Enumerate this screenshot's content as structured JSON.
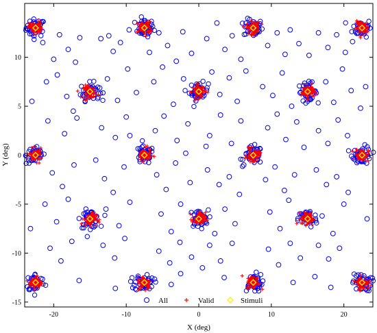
{
  "chart_data": {
    "type": "scatter",
    "xlabel": "X (deg)",
    "ylabel": "Y (deg)",
    "xlim": [
      -24,
      24
    ],
    "ylim": [
      -15.5,
      15.5
    ],
    "xticks": [
      -20,
      -10,
      0,
      10,
      20
    ],
    "yticks": [
      -15,
      -10,
      -5,
      0,
      5,
      10
    ],
    "grid": false,
    "legend_position": "bottom-center",
    "colors": {
      "all": "#0000ee",
      "valid": "#ff0000",
      "stimuli": "#ffee00"
    },
    "series": [
      {
        "name": "All",
        "marker": "open-circle",
        "color": "#0000ee"
      },
      {
        "name": "Valid",
        "marker": "plus",
        "color": "#ff0000"
      },
      {
        "name": "Stimuli",
        "marker": "diamond",
        "color": "#ffee00",
        "points": [
          [
            -22.5,
            13
          ],
          [
            -7.5,
            13
          ],
          [
            7.5,
            13
          ],
          [
            22.5,
            13
          ],
          [
            -15,
            6.5
          ],
          [
            0,
            6.5
          ],
          [
            15,
            6.5
          ],
          [
            -22.5,
            0
          ],
          [
            -7.5,
            0
          ],
          [
            7.5,
            0
          ],
          [
            22.5,
            0
          ],
          [
            -15,
            -6.5
          ],
          [
            0,
            -6.5
          ],
          [
            15,
            -6.5
          ],
          [
            -22.5,
            -13
          ],
          [
            -7.5,
            -13
          ],
          [
            7.5,
            -13
          ],
          [
            22.5,
            -13
          ]
        ]
      }
    ],
    "scattered_all_points": [
      [
        -21.5,
        11.5
      ],
      [
        -20,
        9.8
      ],
      [
        -19.2,
        12.3
      ],
      [
        -18,
        10.8
      ],
      [
        -17,
        9.5
      ],
      [
        -16.4,
        12.0
      ],
      [
        -13.5,
        11.9
      ],
      [
        -12.4,
        12.2
      ],
      [
        -11.8,
        10.6
      ],
      [
        -10.8,
        11.5
      ],
      [
        -9.6,
        12.8
      ],
      [
        -5.5,
        12.5
      ],
      [
        -4.3,
        11.2
      ],
      [
        -3.1,
        9.6
      ],
      [
        -2.2,
        12.6
      ],
      [
        -1.0,
        10.4
      ],
      [
        1.1,
        11.9
      ],
      [
        2.5,
        13.5
      ],
      [
        3.6,
        10.8
      ],
      [
        4.6,
        12.2
      ],
      [
        5.8,
        9.8
      ],
      [
        9.5,
        11.2
      ],
      [
        10.8,
        12.5
      ],
      [
        11.9,
        10.3
      ],
      [
        12.6,
        12.8
      ],
      [
        13.8,
        11.4
      ],
      [
        15.2,
        10.2
      ],
      [
        16.5,
        12.5
      ],
      [
        17.8,
        11.0
      ],
      [
        19.0,
        12.3
      ],
      [
        20.2,
        10.5
      ],
      [
        21.2,
        11.6
      ],
      [
        -21.0,
        7.5
      ],
      [
        -19.5,
        8.2
      ],
      [
        -18.2,
        6.0
      ],
      [
        -17.3,
        4.5
      ],
      [
        -12.6,
        7.8
      ],
      [
        -11.2,
        5.6
      ],
      [
        -9.8,
        8.8
      ],
      [
        -8.6,
        6.4
      ],
      [
        -6.2,
        7.5
      ],
      [
        -5.0,
        9.0
      ],
      [
        -3.5,
        5.2
      ],
      [
        -2.1,
        7.8
      ],
      [
        1.8,
        8.5
      ],
      [
        2.9,
        6.2
      ],
      [
        4.2,
        7.9
      ],
      [
        5.3,
        5.5
      ],
      [
        6.5,
        8.6
      ],
      [
        8.8,
        7.0
      ],
      [
        10.2,
        6.1
      ],
      [
        11.5,
        8.4
      ],
      [
        12.8,
        5.0
      ],
      [
        17.5,
        7.5
      ],
      [
        18.6,
        5.4
      ],
      [
        19.8,
        8.8
      ],
      [
        21.0,
        6.6
      ],
      [
        22.3,
        4.8
      ],
      [
        -20.8,
        3.5
      ],
      [
        -18.5,
        2.2
      ],
      [
        -16.8,
        3.8
      ],
      [
        -13.4,
        2.8
      ],
      [
        -11.5,
        1.8
      ],
      [
        -10.0,
        3.9
      ],
      [
        -6.0,
        2.5
      ],
      [
        -4.8,
        4.0
      ],
      [
        -3.0,
        1.5
      ],
      [
        -1.5,
        3.2
      ],
      [
        1.5,
        2.0
      ],
      [
        3.0,
        4.1
      ],
      [
        4.5,
        1.2
      ],
      [
        5.8,
        3.5
      ],
      [
        9.5,
        2.8
      ],
      [
        10.8,
        4.2
      ],
      [
        12.0,
        1.6
      ],
      [
        13.5,
        3.4
      ],
      [
        16.5,
        2.5
      ],
      [
        17.8,
        1.2
      ],
      [
        19.2,
        3.6
      ],
      [
        20.5,
        2.0
      ],
      [
        -20.2,
        -1.8
      ],
      [
        -18.8,
        -3.2
      ],
      [
        -17.2,
        -1.0
      ],
      [
        -13.0,
        -2.4
      ],
      [
        -11.8,
        -3.8
      ],
      [
        -10.3,
        -1.2
      ],
      [
        -5.8,
        -2.0
      ],
      [
        -4.5,
        -3.5
      ],
      [
        -3.2,
        -0.8
      ],
      [
        -1.2,
        -2.8
      ],
      [
        1.2,
        -1.5
      ],
      [
        2.8,
        -3.0
      ],
      [
        4.2,
        -2.2
      ],
      [
        5.6,
        -4.0
      ],
      [
        9.2,
        -2.5
      ],
      [
        10.5,
        -1.2
      ],
      [
        11.8,
        -3.6
      ],
      [
        13.2,
        -2.0
      ],
      [
        16.2,
        -1.5
      ],
      [
        17.6,
        -3.0
      ],
      [
        19.0,
        -2.2
      ],
      [
        20.6,
        -3.8
      ],
      [
        -21.2,
        -5.0
      ],
      [
        -19.6,
        -6.8
      ],
      [
        -18.0,
        -4.5
      ],
      [
        -12.8,
        -5.5
      ],
      [
        -11.0,
        -7.2
      ],
      [
        -9.5,
        -4.8
      ],
      [
        -5.2,
        -6.0
      ],
      [
        -3.8,
        -7.8
      ],
      [
        -2.5,
        -5.0
      ],
      [
        2.2,
        -8.0
      ],
      [
        3.6,
        -5.5
      ],
      [
        5.0,
        -7.0
      ],
      [
        9.8,
        -5.8
      ],
      [
        11.2,
        -7.5
      ],
      [
        12.4,
        -4.6
      ],
      [
        17.0,
        -6.2
      ],
      [
        18.5,
        -8.0
      ],
      [
        20.0,
        -5.0
      ],
      [
        -20.5,
        -9.5
      ],
      [
        -19.0,
        -10.8
      ],
      [
        -17.5,
        -8.8
      ],
      [
        -13.2,
        -9.2
      ],
      [
        -11.6,
        -10.5
      ],
      [
        -10.2,
        -8.5
      ],
      [
        -5.5,
        -9.8
      ],
      [
        -4.0,
        -11.0
      ],
      [
        -2.6,
        -8.9
      ],
      [
        -1.0,
        -10.4
      ],
      [
        1.5,
        -9.2
      ],
      [
        3.0,
        -10.8
      ],
      [
        4.6,
        -9.0
      ],
      [
        9.6,
        -9.6
      ],
      [
        11.0,
        -11.2
      ],
      [
        12.6,
        -9.0
      ],
      [
        14.0,
        -10.5
      ],
      [
        16.5,
        -9.2
      ],
      [
        17.9,
        -10.6
      ],
      [
        19.4,
        -9.5
      ],
      [
        -16.5,
        -12.8
      ],
      [
        -11.5,
        -13.6
      ],
      [
        -3.8,
        -13.2
      ],
      [
        -2.5,
        -12.1
      ],
      [
        3.5,
        -12.5
      ],
      [
        13.0,
        -13.0
      ],
      [
        16.0,
        -12.4
      ],
      [
        18.2,
        -13.5
      ],
      [
        -9.5,
        2.0
      ],
      [
        -14.2,
        -0.5
      ],
      [
        -6.8,
        10.5
      ],
      [
        0.5,
        -11.5
      ],
      [
        6.2,
        -1.0
      ],
      [
        14.5,
        0.8
      ],
      [
        -1.8,
        0.2
      ],
      [
        1.0,
        0.9
      ],
      [
        -23.0,
        5.5
      ],
      [
        23.2,
        -6.5
      ],
      [
        -23.2,
        -7.5
      ],
      [
        23.0,
        7.0
      ]
    ]
  },
  "legend": {
    "all_label": "All",
    "valid_label": "Valid",
    "stimuli_label": "Stimuli"
  }
}
